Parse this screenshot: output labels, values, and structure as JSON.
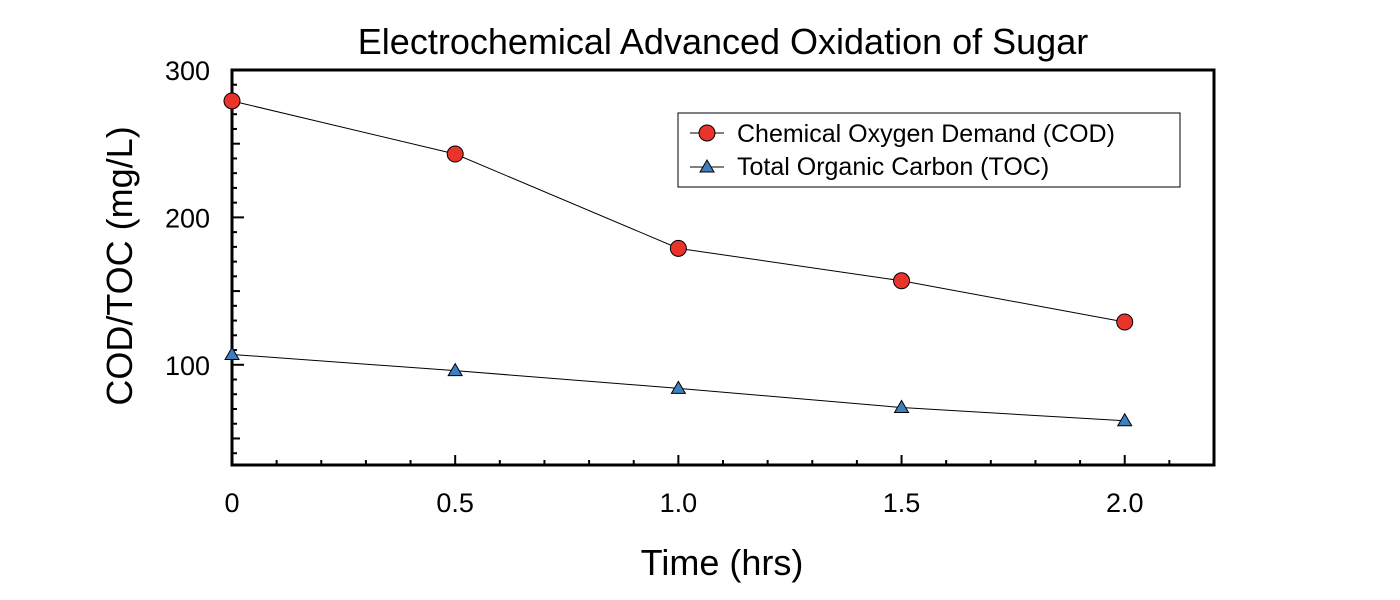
{
  "chart_data": {
    "type": "line",
    "title": "Electrochemical Advanced Oxidation of Sugar",
    "xlabel": "Time (hrs)",
    "ylabel": "COD/TOC (mg/L)",
    "xlim": [
      0,
      2.2
    ],
    "ylim": [
      32,
      300
    ],
    "x_ticks": [
      0,
      0.5,
      1.0,
      1.5,
      2.0
    ],
    "x_tick_labels": [
      "0",
      "0.5",
      "1.0",
      "1.5",
      "2.0"
    ],
    "y_ticks": [
      100,
      200,
      300
    ],
    "y_tick_labels": [
      "100",
      "200",
      "300"
    ],
    "grid": false,
    "legend_position": "top-right",
    "x": [
      0,
      0.5,
      1.0,
      1.5,
      2.0
    ],
    "series": [
      {
        "name": "Chemical Oxygen Demand (COD)",
        "values": [
          279,
          243,
          179,
          157,
          129
        ],
        "marker": "circle",
        "color": "#e8342a"
      },
      {
        "name": "Total Organic Carbon (TOC)",
        "values": [
          107,
          96,
          84,
          71,
          62
        ],
        "marker": "triangle",
        "color": "#3f7fbf"
      }
    ]
  }
}
